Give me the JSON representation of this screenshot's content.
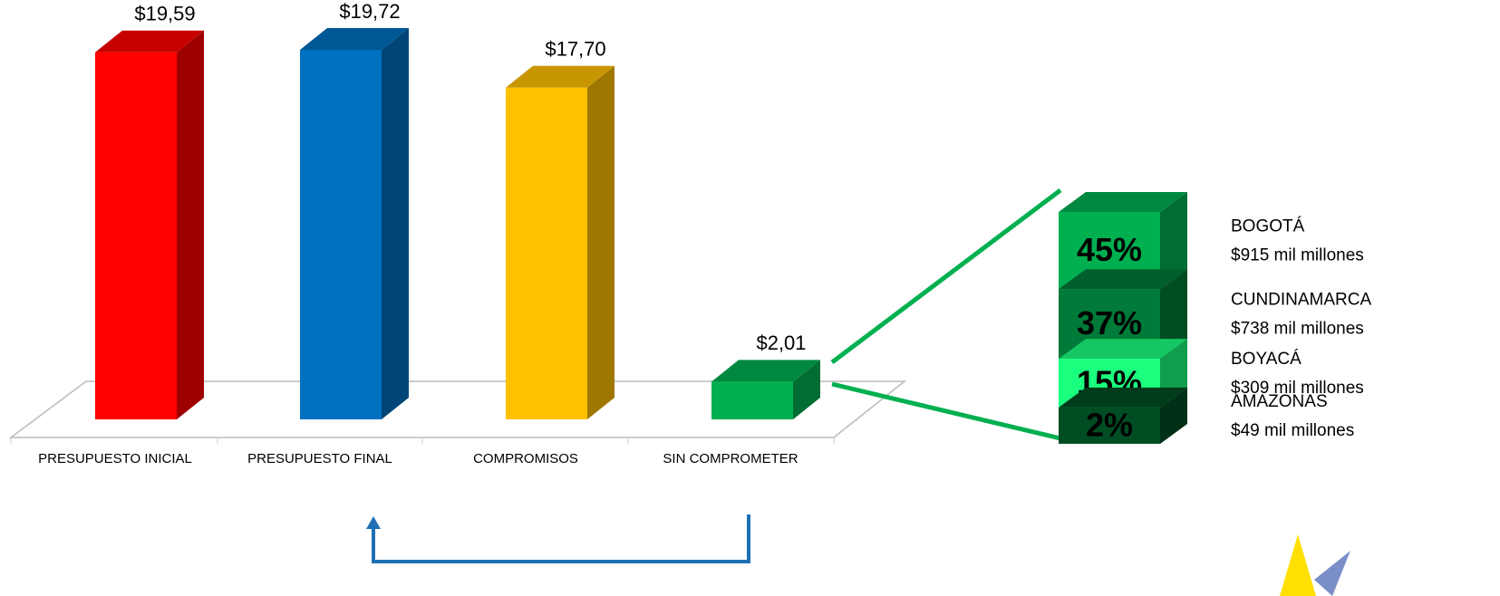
{
  "chart_data": {
    "type": "bar3d",
    "categories": [
      "PRESUPUESTO INICIAL",
      "PRESUPUESTO FINAL",
      "COMPROMISOS",
      "SIN COMPROMETER"
    ],
    "values": [
      19.59,
      19.72,
      17.7,
      2.01
    ],
    "value_labels": [
      "$19,59",
      "$19,72",
      "$17,70",
      "$2,01"
    ],
    "colors": [
      "#ff0000",
      "#0070c0",
      "#ffc000",
      "#00b050"
    ],
    "breakdown": {
      "categories": [
        "BOGOTÁ",
        "CUNDINAMARCA",
        "BOYACÁ",
        "AMAZONAS"
      ],
      "values": [
        45,
        37,
        15,
        2
      ],
      "value_labels": [
        "45%",
        "37%",
        "15%",
        "2%"
      ],
      "amounts": [
        915,
        738,
        309,
        49
      ],
      "amount_labels": [
        "$915 mil millones",
        "$738 mil millones",
        "$309 mil millones",
        "$49 mil millones"
      ],
      "colors": [
        "#00b050",
        "#007a38",
        "#1aff7e",
        "#004d23"
      ]
    }
  }
}
